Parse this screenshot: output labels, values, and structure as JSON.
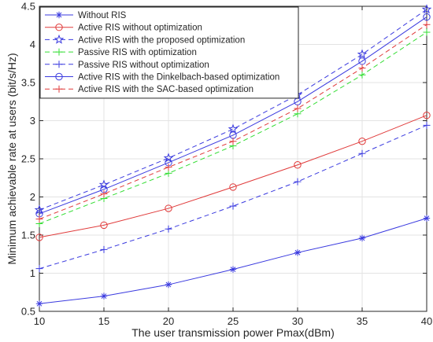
{
  "chart_data": {
    "type": "line",
    "title": "",
    "xlabel": "The user transmission power Pmax(dBm)",
    "ylabel": "Minimum achievable rate at users (bit/s/Hz)",
    "x": [
      10,
      15,
      20,
      25,
      30,
      35,
      40
    ],
    "xlim": [
      10,
      40
    ],
    "ylim": [
      0.5,
      4.5
    ],
    "xticks": [
      10,
      15,
      20,
      25,
      30,
      35,
      40
    ],
    "yticks": [
      0.5,
      1,
      1.5,
      2,
      2.5,
      3,
      3.5,
      4,
      4.5
    ],
    "grid": true,
    "legend_position": "top-left",
    "series": [
      {
        "name": "Without RIS",
        "values": [
          0.6,
          0.7,
          0.85,
          1.05,
          1.27,
          1.46,
          1.72
        ],
        "color": "#3a3adf",
        "dash": "solid",
        "marker": "asterisk"
      },
      {
        "name": "Active RIS without optimization",
        "values": [
          1.47,
          1.63,
          1.85,
          2.13,
          2.42,
          2.73,
          3.07
        ],
        "color": "#e03a3a",
        "dash": "solid",
        "marker": "circle"
      },
      {
        "name": "Active RIS with the proposed optimization",
        "values": [
          1.83,
          2.16,
          2.51,
          2.89,
          3.34,
          3.87,
          4.46
        ],
        "color": "#3a3adf",
        "dash": "dashed",
        "marker": "star"
      },
      {
        "name": "Passive RIS with optimization",
        "values": [
          1.65,
          1.98,
          2.31,
          2.67,
          3.09,
          3.6,
          4.16
        ],
        "color": "#33dd33",
        "dash": "dashed",
        "marker": "plus"
      },
      {
        "name": "Passive RIS without optimization",
        "values": [
          1.06,
          1.31,
          1.58,
          1.88,
          2.2,
          2.57,
          2.94
        ],
        "color": "#3a3adf",
        "dash": "dashed",
        "marker": "plus"
      },
      {
        "name": "Active RIS with the Dinkelbach-based optimization",
        "values": [
          1.78,
          2.1,
          2.45,
          2.81,
          3.25,
          3.78,
          4.36
        ],
        "color": "#3a3adf",
        "dash": "solid",
        "marker": "circle"
      },
      {
        "name": "Active RIS with the SAC-based optimization",
        "values": [
          1.71,
          2.04,
          2.39,
          2.73,
          3.16,
          3.69,
          4.26
        ],
        "color": "#e03a3a",
        "dash": "dashed",
        "marker": "plus"
      }
    ]
  }
}
